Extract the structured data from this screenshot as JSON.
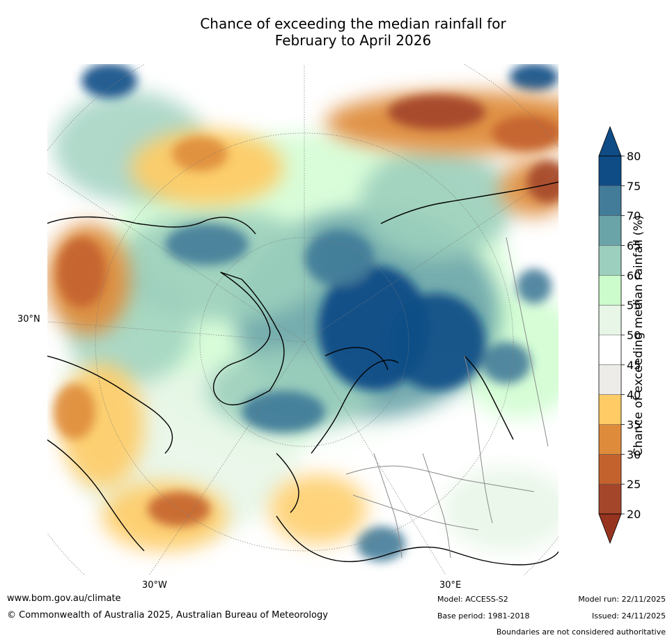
{
  "title": {
    "line1": "Chance of exceeding the median rainfall for",
    "line2": "February to April 2026"
  },
  "map": {
    "projection": "north-polar-stereographic",
    "labels": {
      "lat_30n": "30°N",
      "lon_30w": "30°W",
      "lon_30e": "30°E"
    }
  },
  "colorbar": {
    "title": "Chance of exceeding median rainfall (%)",
    "ticks": [
      "80",
      "75",
      "70",
      "65",
      "60",
      "55",
      "50",
      "45",
      "40",
      "35",
      "30",
      "25",
      "20"
    ],
    "bins": [
      {
        "range": "75-80",
        "color": "#0f4c86"
      },
      {
        "range": "70-75",
        "color": "#427c99"
      },
      {
        "range": "65-70",
        "color": "#6aa4a8"
      },
      {
        "range": "60-65",
        "color": "#9ccfbd"
      },
      {
        "range": "55-60",
        "color": "#ccfccc"
      },
      {
        "range": "50-55",
        "color": "#e8f6e8"
      },
      {
        "range": "45-50",
        "color": "#ffffff"
      },
      {
        "range": "40-45",
        "color": "#eeece9"
      },
      {
        "range": "35-40",
        "color": "#fecb65"
      },
      {
        "range": "30-35",
        "color": "#de8c3c"
      },
      {
        "range": "25-30",
        "color": "#c4622e"
      },
      {
        "range": "20-25",
        "color": "#a4462a"
      }
    ],
    "over_color": "#0f4c86",
    "under_color": "#973420"
  },
  "footer": {
    "website": "www.bom.gov.au/climate",
    "copyright": "© Commonwealth of Australia 2025, Australian Bureau of Meteorology",
    "model": "Model: ACCESS-S2",
    "base_period": "Base period: 1981-2018",
    "model_run": "Model run: 22/11/2025",
    "issued": "Issued: 24/11/2025",
    "disclaimer": "Boundaries are not considered authoritative"
  }
}
